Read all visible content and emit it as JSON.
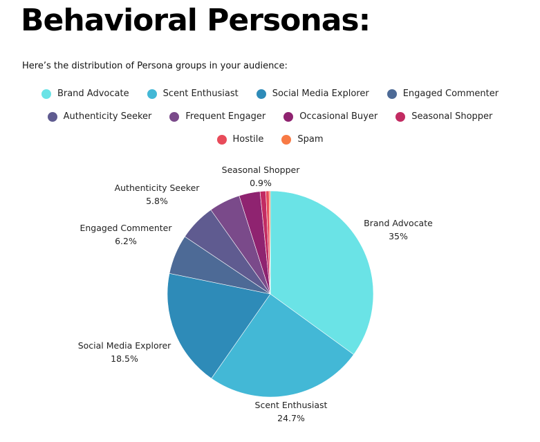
{
  "title": "Behavioral Personas:",
  "subtitle": "Here’s the distribution of Persona groups in your audience:",
  "chart_data": {
    "type": "pie",
    "legend_position": "top",
    "categories": [
      "Brand Advocate",
      "Scent Enthusiast",
      "Social Media Explorer",
      "Engaged Commenter",
      "Authenticity Seeker",
      "Frequent Engager",
      "Occasional Buyer",
      "Seasonal Shopper",
      "Hostile",
      "Spam"
    ],
    "values": [
      35,
      24.7,
      18.5,
      6.2,
      5.8,
      4.9,
      3.3,
      0.9,
      0.5,
      0.2
    ],
    "value_labels": [
      "35%",
      "24.7%",
      "18.5%",
      "6.2%",
      "5.8%",
      "",
      "",
      "0.9%",
      "",
      ""
    ],
    "colors": [
      "#6ae3e6",
      "#43b8d6",
      "#2e8bb8",
      "#4d6a96",
      "#5f5b90",
      "#7a4a8a",
      "#8f2370",
      "#c22b62",
      "#e84b5a",
      "#f87a45"
    ]
  }
}
